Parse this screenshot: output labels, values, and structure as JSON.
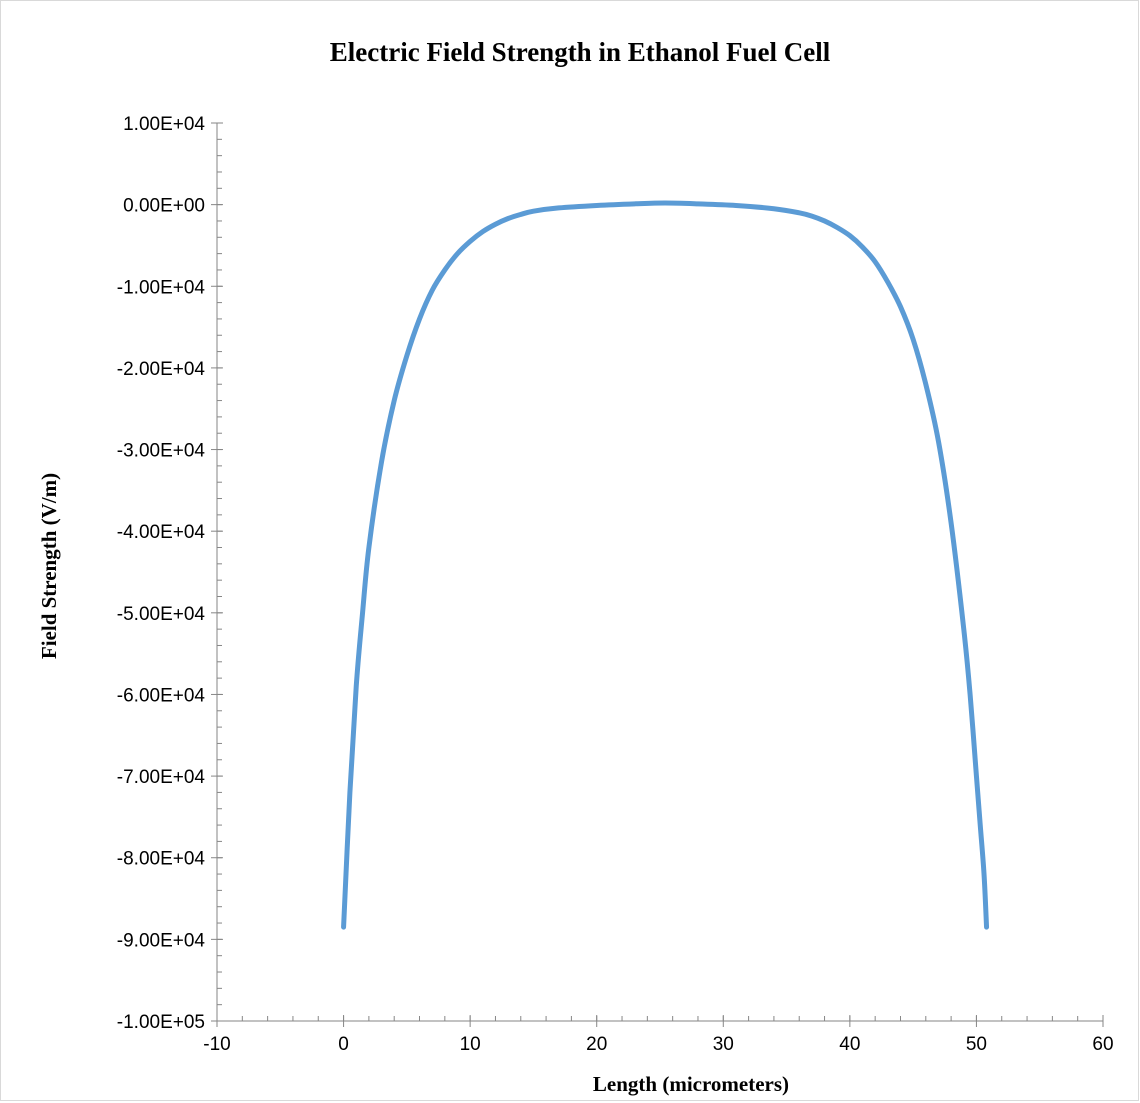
{
  "chart_data": {
    "type": "line",
    "title": "Electric Field Strength in Ethanol Fuel Cell",
    "xlabel": "Length (micrometers)",
    "ylabel": "Field Strength (V/m)",
    "xlim": [
      -10,
      60
    ],
    "ylim": [
      -100000,
      10000
    ],
    "x_ticks": [
      -10,
      0,
      10,
      20,
      30,
      40,
      50,
      60
    ],
    "x_tick_labels": [
      "-10",
      "0",
      "10",
      "20",
      "30",
      "40",
      "50",
      "60"
    ],
    "y_ticks": [
      10000,
      0,
      -10000,
      -20000,
      -30000,
      -40000,
      -50000,
      -60000,
      -70000,
      -80000,
      -90000,
      -100000
    ],
    "y_tick_labels": [
      "1.00E+04",
      "0.00E+00",
      "-1.00E+04",
      "-2.00E+04",
      "-3.00E+04",
      "-4.00E+04",
      "-5.00E+04",
      "-6.00E+04",
      "-7.00E+04",
      "-8.00E+04",
      "-9.00E+04",
      "-1.00E+05"
    ],
    "grid": false,
    "legend": "none",
    "series": [
      {
        "color": "#5b9bd5",
        "x": [
          0,
          0.5,
          1,
          1.5,
          2,
          3,
          4,
          5,
          6,
          7,
          8,
          9,
          10,
          11,
          12,
          13,
          14,
          15,
          17,
          20,
          23,
          25.4,
          28,
          31,
          34,
          36,
          37,
          38,
          39,
          40,
          41,
          42,
          43,
          44,
          45,
          46,
          47,
          48,
          49,
          49.5,
          50,
          50.3,
          50.6,
          50.8
        ],
        "y": [
          -88500,
          -72000,
          -59000,
          -50000,
          -42000,
          -31500,
          -24000,
          -18500,
          -14000,
          -10500,
          -8000,
          -6000,
          -4500,
          -3300,
          -2400,
          -1700,
          -1200,
          -800,
          -400,
          -100,
          100,
          200,
          100,
          -100,
          -500,
          -1000,
          -1400,
          -2000,
          -2800,
          -3800,
          -5200,
          -7000,
          -9500,
          -12500,
          -16500,
          -22000,
          -29000,
          -39000,
          -52000,
          -60000,
          -70000,
          -76000,
          -82000,
          -88500
        ]
      }
    ]
  }
}
